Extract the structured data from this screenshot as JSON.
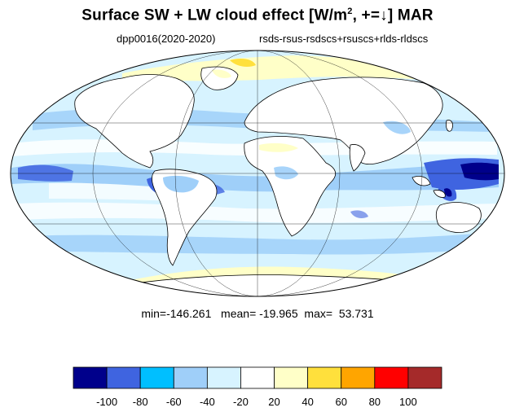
{
  "title": {
    "main": "Surface SW + LW cloud effect [W/m",
    "superscript": "2",
    "tail": ", +=↓]  MAR"
  },
  "subtitle_left": "dpp0016(2020-2020)",
  "subtitle_right": "rsds-rsus-rsdscs+rsuscs+rlds-rldscs",
  "stats": {
    "min_label": "min=",
    "min": "-146.261",
    "mean_label": "mean=",
    "mean": "-19.965",
    "max_label": "max=",
    "max": "53.731"
  },
  "colorbar": {
    "colors": [
      "#00008b",
      "#3f64e0",
      "#00bfff",
      "#9fcff9",
      "#d7f3ff",
      "#ffffff",
      "#ffffc8",
      "#ffe03c",
      "#ffa500",
      "#ff0000",
      "#a52a2a"
    ],
    "labels": [
      "-100",
      "-80",
      "-60",
      "-40",
      "-20",
      "20",
      "40",
      "60",
      "80",
      "100"
    ]
  },
  "map": {
    "projection": "mollweide",
    "colors": {
      "ocean_base": "#d7f3ff",
      "land_base": "#ffffff",
      "mid_blue": "#9fcff9",
      "strong_blue": "#3f64e0",
      "deep_blue": "#00008b",
      "light_yellow": "#ffffc8",
      "gold": "#ffe03c"
    }
  }
}
